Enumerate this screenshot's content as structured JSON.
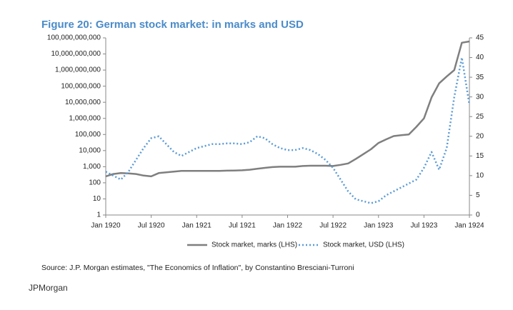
{
  "chart_data": {
    "type": "line",
    "title": "Figure 20: German stock market: in marks and USD",
    "source": "Source: J.P. Morgan estimates, \"The Economics of Inflation\", by Constantino Bresciani-Turroni",
    "footer": "JPMorgan",
    "categories": [
      "Jan 1920",
      null,
      null,
      null,
      null,
      null,
      "Jul 1920",
      null,
      null,
      null,
      null,
      null,
      "Jan 1921",
      null,
      null,
      null,
      null,
      null,
      "Jul 1921",
      null,
      null,
      null,
      null,
      null,
      "Jan 1922",
      null,
      null,
      null,
      null,
      null,
      "Jul 1922",
      null,
      null,
      null,
      null,
      null,
      "Jan 1923",
      null,
      null,
      null,
      null,
      null,
      "Jul 1923",
      null,
      null,
      null,
      null,
      null,
      "Jan 1924"
    ],
    "ylog": true,
    "ylim": [
      1,
      100000000000
    ],
    "yticks": [
      1,
      10,
      100,
      {
        "value": 1000,
        "label": "1,000"
      },
      {
        "value": 10000,
        "label": "10,000"
      },
      {
        "value": 100000,
        "label": "100,000"
      },
      {
        "value": 1000000,
        "label": "1,000,000"
      },
      {
        "value": 10000000,
        "label": "10,000,000"
      },
      {
        "value": 100000000,
        "label": "100,000,000"
      },
      {
        "value": 1000000000,
        "label": "1,000,000,000"
      },
      {
        "value": 10000000000,
        "label": "10,000,000,000"
      },
      {
        "value": 100000000000,
        "label": "100,000,000,000"
      }
    ],
    "y2lim": [
      0,
      45
    ],
    "y2ticks": [
      0,
      5,
      10,
      15,
      20,
      25,
      30,
      35,
      40,
      45
    ],
    "legend": "bottom",
    "series": [
      {
        "name": "Stock market, marks (LHS)",
        "color": "#7f7f7f",
        "style": "solid",
        "values": [
          250,
          350,
          400,
          380,
          350,
          280,
          250,
          400,
          450,
          500,
          550,
          550,
          550,
          550,
          550,
          550,
          570,
          580,
          600,
          650,
          750,
          850,
          950,
          1000,
          1000,
          1000,
          1100,
          1150,
          1150,
          1150,
          1100,
          1300,
          1600,
          3000,
          6000,
          12000,
          30000,
          50000,
          80000,
          90000,
          100000,
          300000,
          1000000,
          20000000,
          150000000,
          400000000,
          1000000000,
          50000000000,
          60000000000
        ]
      },
      {
        "name": "Stock market, USD (LHS)",
        "color": "#5b9bd5",
        "style": "dotted",
        "axis": "y2",
        "values": [
          11,
          10,
          9,
          11,
          14,
          17,
          19.5,
          20,
          18,
          16,
          15,
          16,
          17,
          17.5,
          18,
          18,
          18.2,
          18.2,
          18,
          18.5,
          20,
          19.5,
          18,
          17,
          16.5,
          16.5,
          17,
          16.5,
          15.5,
          14,
          12,
          9,
          6,
          4,
          3.5,
          3,
          3.5,
          5,
          6,
          7,
          8,
          9,
          12,
          16,
          11.5,
          17,
          30,
          40,
          28
        ]
      }
    ]
  }
}
